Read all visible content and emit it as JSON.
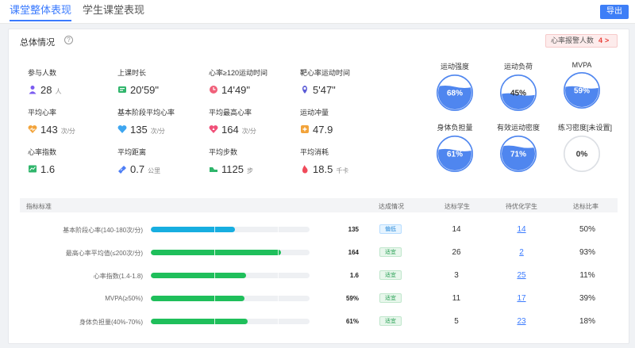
{
  "tabs": [
    "课堂整体表现",
    "学生课堂表现"
  ],
  "export_label": "导出",
  "overview": {
    "title": "总体情况",
    "help": "?",
    "alarm": {
      "label": "心率报警人数",
      "count": "4",
      "arrow": ">"
    }
  },
  "stats": [
    {
      "label": "参与人数",
      "value": "28",
      "unit": "人",
      "icon": "person-icon",
      "color": "#7b5cf0"
    },
    {
      "label": "上课时长",
      "value": "20'59\"",
      "unit": "",
      "icon": "timer-icon",
      "color": "#2fb56b"
    },
    {
      "label": "心率≥120运动时间",
      "value": "14'49\"",
      "unit": "",
      "icon": "clock-icon",
      "color": "#f0607a"
    },
    {
      "label": "靶心率运动时间",
      "value": "5'47\"",
      "unit": "",
      "icon": "location-icon",
      "color": "#5b5bd6"
    },
    {
      "label": "平均心率",
      "value": "143",
      "unit": "次/分",
      "icon": "heart-pulse-icon",
      "color": "#f2a33a"
    },
    {
      "label": "基本阶段平均心率",
      "value": "135",
      "unit": "次/分",
      "icon": "heart-icon",
      "color": "#3ea6f0"
    },
    {
      "label": "平均最高心率",
      "value": "164",
      "unit": "次/分",
      "icon": "heart-peak-icon",
      "color": "#f05079"
    },
    {
      "label": "运动冲量",
      "value": "47.9",
      "unit": "",
      "icon": "plus-icon",
      "color": "#f2a33a"
    },
    {
      "label": "心率指数",
      "value": "1.6",
      "unit": "",
      "icon": "chart-icon",
      "color": "#2fb56b"
    },
    {
      "label": "平均距离",
      "value": "0.7",
      "unit": "公里",
      "icon": "distance-icon",
      "color": "#4d7ef5"
    },
    {
      "label": "平均步数",
      "value": "1125",
      "unit": "步",
      "icon": "shoe-icon",
      "color": "#2fb56b"
    },
    {
      "label": "平均消耗",
      "value": "18.5",
      "unit": "千卡",
      "icon": "flame-icon",
      "color": "#f04a5a"
    }
  ],
  "gauges": [
    {
      "label": "运动强度",
      "value_text": "68%",
      "fraction": 0.68
    },
    {
      "label": "运动负荷",
      "value_text": "45%",
      "fraction": 0.45
    },
    {
      "label": "MVPA",
      "value_text": "59%",
      "fraction": 0.59
    },
    {
      "label": "身体负担量",
      "value_text": "61%",
      "fraction": 0.61
    },
    {
      "label": "有效运动密度",
      "value_text": "71%",
      "fraction": 0.71
    },
    {
      "label": "练习密度[未设置]",
      "value_text": "0%",
      "fraction": 0
    }
  ],
  "table": {
    "headers": [
      "指标标准",
      "达成情况",
      "达标学生",
      "待优化学生",
      "达标比率"
    ],
    "rows": [
      {
        "label": "基本阶段心率(140-180次/分)",
        "value": "135",
        "fill": 0.53,
        "status": "偏低",
        "status_type": "low",
        "reached": "14",
        "to_optimize": "14",
        "ratio": "50%"
      },
      {
        "label": "最高心率平均值(≤200次/分)",
        "value": "164",
        "fill": 0.82,
        "status": "适宜",
        "status_type": "ok",
        "reached": "26",
        "to_optimize": "2",
        "ratio": "93%"
      },
      {
        "label": "心率指数(1.4-1.8)",
        "value": "1.6",
        "fill": 0.6,
        "status": "适宜",
        "status_type": "ok",
        "reached": "3",
        "to_optimize": "25",
        "ratio": "11%"
      },
      {
        "label": "MVPA(≥50%)",
        "value": "59%",
        "fill": 0.59,
        "status": "适宜",
        "status_type": "ok",
        "reached": "11",
        "to_optimize": "17",
        "ratio": "39%"
      },
      {
        "label": "身体负担量(40%-70%)",
        "value": "61%",
        "fill": 0.61,
        "status": "适宜",
        "status_type": "ok",
        "reached": "5",
        "to_optimize": "23",
        "ratio": "18%"
      }
    ]
  },
  "colors": {
    "accent": "#3a7afe",
    "bar_blue": "#17aee0",
    "bar_green": "#1fbf5b",
    "gauge_fill": "#4f86ef"
  }
}
